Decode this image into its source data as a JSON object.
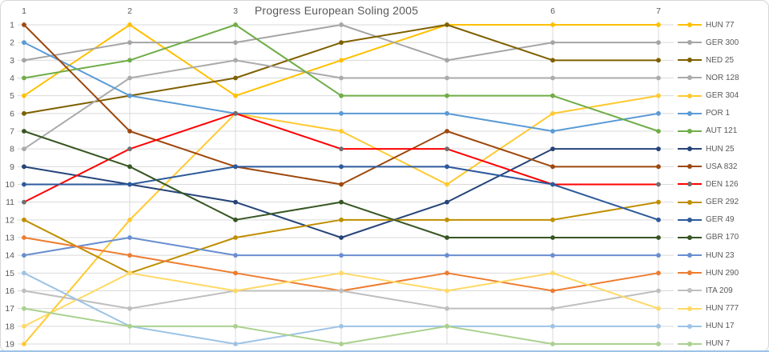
{
  "title": "Progress European Soling 2005",
  "chart_data": {
    "type": "line",
    "description": "Ranking progression chart: overall position (1 = leader) after each of 7 races; ties share a position.",
    "x": [
      1,
      2,
      3,
      4,
      5,
      6,
      7
    ],
    "x_visible_ticks": [
      {
        "race": 1,
        "label": "1"
      },
      {
        "race": 2,
        "label": "2"
      },
      {
        "race": 3,
        "label": "3"
      },
      {
        "race": 6,
        "label": "6"
      },
      {
        "race": 7,
        "label": "7"
      }
    ],
    "y_tick_labels": [
      "1",
      "2",
      "3",
      "4",
      "5",
      "6",
      "7",
      "8",
      "9",
      "10",
      "11",
      "12",
      "13",
      "14",
      "15",
      "16",
      "17",
      "18",
      "19"
    ],
    "y_axis": {
      "min": 1,
      "max": 19,
      "direction": "1 at top (best rank)"
    },
    "grid": true,
    "legend_position": "right",
    "series": [
      {
        "name": "HUN 77",
        "color": "#FFC000",
        "values": [
          5,
          1,
          5,
          3,
          1,
          1,
          1
        ]
      },
      {
        "name": "GER 300",
        "color": "#A5A5A5",
        "values": [
          3,
          2,
          2,
          1,
          3,
          2,
          2
        ]
      },
      {
        "name": "NED 25",
        "color": "#7F6000",
        "values": [
          6,
          5,
          4,
          2,
          1,
          3,
          3
        ]
      },
      {
        "name": "NOR 128",
        "color": "#ABABAB",
        "values": [
          8,
          4,
          3,
          4,
          4,
          4,
          4
        ]
      },
      {
        "name": "GER 304",
        "color": "#FFC930",
        "values": [
          19,
          12,
          6,
          7,
          10,
          6,
          5
        ]
      },
      {
        "name": "POR 1",
        "color": "#5B9BD5",
        "values": [
          2,
          5,
          6,
          6,
          6,
          7,
          6
        ]
      },
      {
        "name": "AUT 121",
        "color": "#70AD47",
        "values": [
          4,
          3,
          1,
          5,
          5,
          5,
          7
        ]
      },
      {
        "name": "HUN 25",
        "color": "#264478",
        "values": [
          9,
          10,
          11,
          13,
          11,
          8,
          8
        ]
      },
      {
        "name": "USA 832",
        "color": "#9E480E",
        "values": [
          1,
          7,
          9,
          10,
          7,
          9,
          9
        ]
      },
      {
        "name": "DEN 126",
        "color": "#FF0000",
        "marker_color": "#6E6E6E",
        "values": [
          11,
          8,
          6,
          8,
          8,
          10,
          10
        ]
      },
      {
        "name": "GER 292",
        "color": "#BF8F00",
        "values": [
          12,
          15,
          13,
          12,
          12,
          12,
          11
        ]
      },
      {
        "name": "GER 49",
        "color": "#2D5A9C",
        "values": [
          10,
          10,
          9,
          9,
          9,
          10,
          12
        ]
      },
      {
        "name": "GBR 170",
        "color": "#375623",
        "values": [
          7,
          9,
          12,
          11,
          13,
          13,
          13
        ]
      },
      {
        "name": "HUN 23",
        "color": "#698ED0",
        "values": [
          14,
          13,
          14,
          14,
          14,
          14,
          14
        ]
      },
      {
        "name": "HUN 290",
        "color": "#ED7D31",
        "values": [
          13,
          14,
          15,
          16,
          15,
          16,
          15
        ]
      },
      {
        "name": "ITA 209",
        "color": "#BFBFBF",
        "values": [
          16,
          17,
          16,
          16,
          17,
          17,
          16
        ]
      },
      {
        "name": "HUN 777",
        "color": "#FFD966",
        "values": [
          18,
          15,
          16,
          15,
          16,
          15,
          17
        ]
      },
      {
        "name": "HUN 17",
        "color": "#9DC3E6",
        "values": [
          15,
          18,
          19,
          18,
          18,
          18,
          18
        ]
      },
      {
        "name": "HUN 7",
        "color": "#A9D18E",
        "values": [
          17,
          18,
          18,
          19,
          18,
          19,
          19
        ]
      }
    ]
  },
  "colors": {
    "grid_line": "#D9D9D9",
    "tick_text": "#595959",
    "title_text": "#595959",
    "frame_border": "#D6D6D6",
    "bottom_strip": "#9DC3E6",
    "background": "#FFFFFF"
  }
}
